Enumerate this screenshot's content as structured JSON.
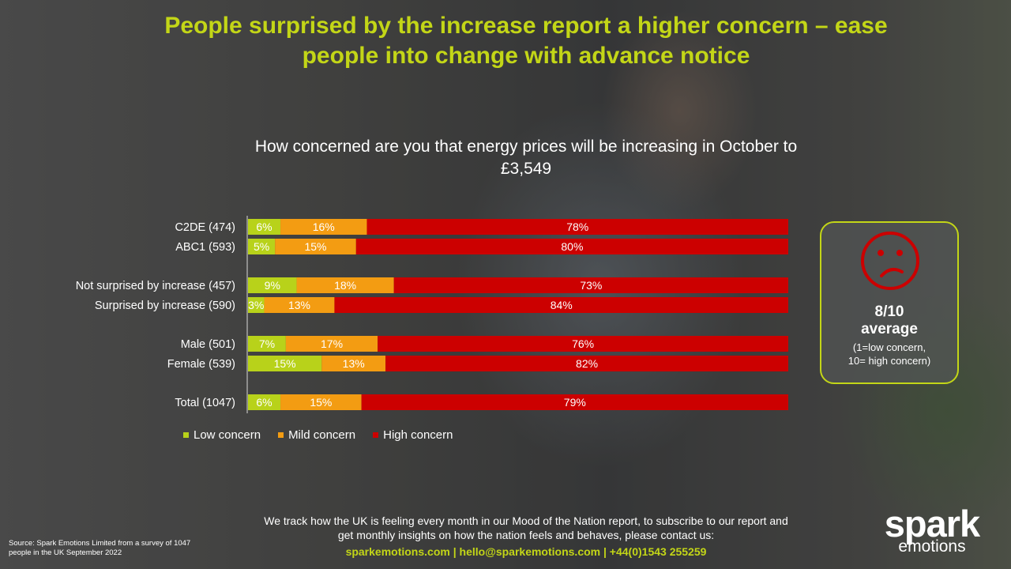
{
  "title": "People surprised by the increase report a higher concern – ease people into change with advance notice",
  "colors": {
    "accent": "#c3d617",
    "low": "#b8d21a",
    "mild": "#f39c12",
    "high": "#cc0000"
  },
  "chart_data": {
    "type": "bar",
    "orientation": "horizontal",
    "stacked": true,
    "title": "How concerned are you that energy prices will be increasing in October to £3,549",
    "categories": [
      "C2DE (474)",
      "ABC1 (593)",
      "Not surprised by increase (457)",
      "Surprised by increase (590)",
      "Male (501)",
      "Female (539)",
      "Total (1047)"
    ],
    "groups": [
      [
        0,
        1
      ],
      [
        2,
        3
      ],
      [
        4,
        5
      ],
      [
        6
      ]
    ],
    "series": [
      {
        "name": "Low concern",
        "values": [
          6,
          5,
          9,
          3,
          7,
          15,
          6
        ],
        "color": "#b8d21a"
      },
      {
        "name": "Mild concern",
        "values": [
          16,
          15,
          18,
          13,
          17,
          13,
          15
        ],
        "color": "#f39c12"
      },
      {
        "name": "High concern",
        "values": [
          78,
          80,
          73,
          84,
          76,
          82,
          79
        ],
        "color": "#cc0000"
      }
    ],
    "unit": "%",
    "legend_position": "bottom-left"
  },
  "average": {
    "icon": "sad-face-icon",
    "score": "8/10",
    "label": "average",
    "note_line1": "(1=low concern,",
    "note_line2": "10= high concern)"
  },
  "footer": {
    "text": "We track how the UK is feeling every month in our Mood of the Nation report, to subscribe to our report and get monthly insights on how the nation feels and behaves, please contact us:",
    "contact": "sparkemotions.com | hello@sparkemotions.com | +44(0)1543 255259"
  },
  "source": "Source: Spark Emotions Limited from a survey of 1047 people in the UK September 2022",
  "logo": {
    "main": "spark",
    "sub": "emotions"
  }
}
